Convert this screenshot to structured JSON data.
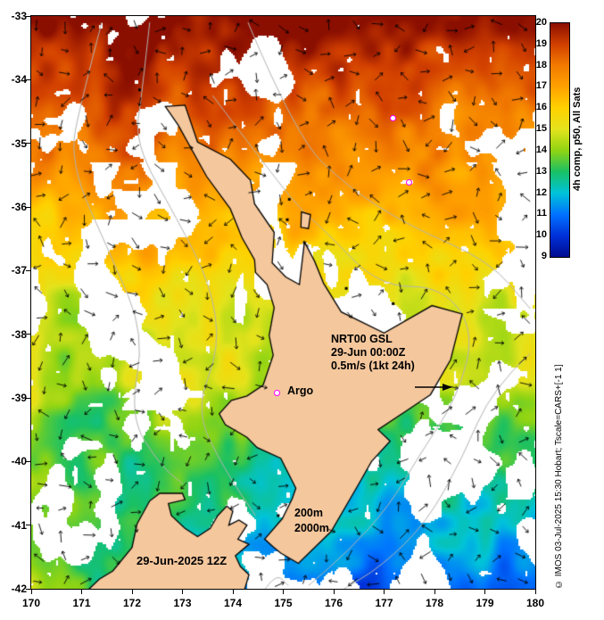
{
  "map": {
    "x_axis": {
      "range": [
        170,
        180
      ],
      "ticks": [
        "170",
        "171",
        "172",
        "173",
        "174",
        "175",
        "176",
        "177",
        "178",
        "179",
        "180"
      ]
    },
    "y_axis": {
      "range": [
        -33,
        -42
      ],
      "ticks": [
        "-33",
        "-34",
        "-35",
        "-36",
        "-37",
        "-38",
        "-39",
        "-40",
        "-41",
        "-42"
      ]
    },
    "colorbar": {
      "label": "4h comp, p50, All Sats",
      "tick_labels": [
        "20",
        "19",
        "18",
        "17",
        "16",
        "15",
        "14",
        "13",
        "12",
        "11",
        "10",
        "9"
      ],
      "colors_top_to_bottom": [
        "#8b0f00",
        "#d24000",
        "#f27b00",
        "#ffa200",
        "#ffd100",
        "#e3e31c",
        "#8fd413",
        "#19c064",
        "#00c3d9",
        "#0072ff",
        "#0030d9",
        "#000c8f"
      ]
    },
    "annotations": {
      "vector_legend_line1": "NRT00 GSL",
      "vector_legend_line2": "29-Jun 00:00Z",
      "vector_legend_line3": "0.5m/s (1kt 24h)",
      "argo": "Argo",
      "depth_line1": "200m",
      "depth_line2": "2000m",
      "timestamp": "29-Jun-2025 12Z",
      "copyright": "© IMOS 03-Jul-2025 15:30 Hobart; Tscale=CARS+[-1 1]"
    },
    "colors": {
      "land": "#f4c79d",
      "coastline": "#000000",
      "marker": "#ff00ff",
      "contour": "#b4b4b4",
      "cloud": "#ffffff"
    },
    "markers": [
      {
        "name": "float-1",
        "lon": 177.17,
        "lat": -34.61
      },
      {
        "name": "float-2",
        "lon": 177.49,
        "lat": -35.61
      },
      {
        "name": "argo",
        "lon": 174.87,
        "lat": -38.92
      }
    ],
    "geometry": {
      "north_island": [
        [
          172.66,
          -34.42
        ],
        [
          173.05,
          -34.4
        ],
        [
          173.3,
          -34.98
        ],
        [
          173.95,
          -35.25
        ],
        [
          174.35,
          -35.58
        ],
        [
          174.43,
          -35.95
        ],
        [
          174.82,
          -36.4
        ],
        [
          174.78,
          -36.88
        ],
        [
          175.05,
          -37.1
        ],
        [
          175.32,
          -37.22
        ],
        [
          175.42,
          -36.55
        ],
        [
          175.62,
          -36.85
        ],
        [
          175.8,
          -37.2
        ],
        [
          176.15,
          -37.65
        ],
        [
          177.0,
          -37.98
        ],
        [
          177.95,
          -37.55
        ],
        [
          178.55,
          -37.68
        ],
        [
          178.32,
          -38.4
        ],
        [
          177.92,
          -38.95
        ],
        [
          177.45,
          -39.2
        ],
        [
          176.88,
          -39.5
        ],
        [
          177.12,
          -39.68
        ],
        [
          176.75,
          -40.0
        ],
        [
          176.5,
          -40.35
        ],
        [
          175.95,
          -41.1
        ],
        [
          175.3,
          -41.6
        ],
        [
          174.95,
          -41.44
        ],
        [
          174.8,
          -41.34
        ],
        [
          174.63,
          -41.22
        ],
        [
          174.98,
          -40.9
        ],
        [
          175.18,
          -40.58
        ],
        [
          175.25,
          -40.42
        ],
        [
          174.95,
          -39.95
        ],
        [
          174.48,
          -39.78
        ],
        [
          174.28,
          -39.62
        ],
        [
          173.85,
          -39.42
        ],
        [
          173.73,
          -39.25
        ],
        [
          173.97,
          -39.04
        ],
        [
          174.28,
          -38.97
        ],
        [
          174.6,
          -38.8
        ],
        [
          174.8,
          -38.33
        ],
        [
          174.72,
          -38.02
        ],
        [
          174.82,
          -37.58
        ],
        [
          174.68,
          -37.22
        ],
        [
          174.45,
          -37.03
        ],
        [
          174.43,
          -36.83
        ],
        [
          174.18,
          -36.48
        ],
        [
          173.95,
          -36.03
        ],
        [
          173.48,
          -35.52
        ],
        [
          173.2,
          -35.12
        ],
        [
          172.92,
          -34.72
        ]
      ],
      "south_island": [
        [
          171.02,
          -42.1
        ],
        [
          171.35,
          -41.85
        ],
        [
          171.62,
          -41.72
        ],
        [
          172.0,
          -41.35
        ],
        [
          172.1,
          -40.98
        ],
        [
          172.35,
          -40.62
        ],
        [
          172.55,
          -40.5
        ],
        [
          173.0,
          -40.5
        ],
        [
          173.05,
          -40.6
        ],
        [
          172.72,
          -40.66
        ],
        [
          172.78,
          -40.85
        ],
        [
          173.05,
          -41.05
        ],
        [
          173.3,
          -41.18
        ],
        [
          173.55,
          -41.05
        ],
        [
          173.7,
          -40.85
        ],
        [
          173.88,
          -40.7
        ],
        [
          174.0,
          -40.78
        ],
        [
          173.92,
          -41.0
        ],
        [
          174.12,
          -40.92
        ],
        [
          174.28,
          -41.0
        ],
        [
          174.1,
          -41.22
        ],
        [
          174.32,
          -41.3
        ],
        [
          174.05,
          -41.48
        ],
        [
          174.15,
          -41.65
        ],
        [
          174.32,
          -41.78
        ],
        [
          174.2,
          -42.1
        ]
      ],
      "great_barrier": [
        [
          175.35,
          -36.32
        ],
        [
          175.36,
          -36.08
        ],
        [
          175.54,
          -36.12
        ],
        [
          175.5,
          -36.34
        ]
      ],
      "islets": [
        [
          175.08,
          -36.2
        ],
        [
          175.12,
          -35.88
        ],
        [
          176.25,
          -37.28
        ],
        [
          177.18,
          -37.52
        ],
        [
          174.9,
          -40.85
        ],
        [
          172.15,
          -34.16
        ]
      ],
      "contours_200m": [
        [
          [
            172.35,
            -33.1
          ],
          [
            172.2,
            -34.2
          ],
          [
            172.05,
            -35.0
          ],
          [
            172.9,
            -36.2
          ],
          [
            173.55,
            -37.2
          ],
          [
            173.75,
            -38.2
          ],
          [
            173.25,
            -39.2
          ],
          [
            173.85,
            -40.15
          ],
          [
            174.45,
            -40.85
          ]
        ],
        [
          [
            173.6,
            -34.25
          ],
          [
            174.6,
            -35.3
          ],
          [
            175.35,
            -36.05
          ],
          [
            175.8,
            -36.35
          ],
          [
            176.9,
            -37.25
          ],
          [
            178.15,
            -37.25
          ],
          [
            178.8,
            -37.95
          ],
          [
            178.45,
            -39.0
          ],
          [
            177.7,
            -39.9
          ],
          [
            177.1,
            -40.7
          ],
          [
            176.3,
            -41.4
          ],
          [
            175.5,
            -41.95
          ]
        ],
        [
          [
            174.6,
            -42.05
          ],
          [
            174.85,
            -41.75
          ],
          [
            175.1,
            -41.95
          ]
        ]
      ],
      "contours_2000m": [
        [
          [
            171.4,
            -33.1
          ],
          [
            171.0,
            -34.3
          ],
          [
            170.75,
            -35.3
          ],
          [
            171.6,
            -36.8
          ],
          [
            172.25,
            -38.0
          ],
          [
            171.95,
            -39.3
          ],
          [
            172.55,
            -40.05
          ],
          [
            173.0,
            -40.35
          ]
        ],
        [
          [
            174.3,
            -33.1
          ],
          [
            175.25,
            -34.9
          ],
          [
            176.3,
            -35.7
          ],
          [
            177.5,
            -36.3
          ],
          [
            179.1,
            -36.85
          ],
          [
            179.9,
            -37.6
          ]
        ],
        [
          [
            179.9,
            -38.3
          ],
          [
            179.15,
            -38.85
          ],
          [
            178.55,
            -39.95
          ],
          [
            177.85,
            -40.95
          ],
          [
            176.95,
            -41.65
          ],
          [
            176.1,
            -42.05
          ]
        ]
      ]
    }
  }
}
